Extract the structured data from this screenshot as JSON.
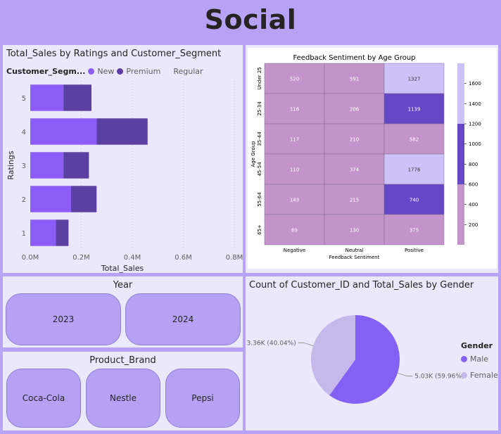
{
  "header": {
    "title": "Social"
  },
  "bar_panel": {
    "title": "Total_Sales by Ratings and Customer_Segment",
    "legend_title": "Customer_Segm...",
    "legend": [
      {
        "name": "New",
        "color": "#8c5cf6"
      },
      {
        "name": "Premium",
        "color": "#5b3fa3"
      },
      {
        "name": "Regular",
        "color": "#ece8fb"
      }
    ]
  },
  "chart_data": [
    {
      "type": "bar",
      "orientation": "horizontal",
      "stacked": true,
      "title": "Total_Sales by Ratings and Customer_Segment",
      "xlabel": "Total_Sales",
      "ylabel": "Ratings",
      "categories": [
        "5",
        "4",
        "3",
        "2",
        "1"
      ],
      "series": [
        {
          "name": "New",
          "color": "#8c5cf6",
          "values": [
            0.13,
            0.26,
            0.13,
            0.16,
            0.1
          ]
        },
        {
          "name": "Premium",
          "color": "#5b3fa3",
          "values": [
            0.11,
            0.2,
            0.1,
            0.1,
            0.05
          ]
        },
        {
          "name": "Regular",
          "color": "#ece8fb",
          "values": [
            0,
            0,
            0,
            0,
            0
          ]
        }
      ],
      "xlim": [
        0,
        0.8
      ],
      "xticks": [
        {
          "v": 0,
          "label": "0.0M"
        },
        {
          "v": 0.2,
          "label": "0.2M"
        },
        {
          "v": 0.4,
          "label": "0.4M"
        },
        {
          "v": 0.6,
          "label": "0.6M"
        },
        {
          "v": 0.8,
          "label": "0.8M"
        }
      ]
    },
    {
      "type": "heatmap",
      "title": "Feedback Sentiment by Age Group",
      "xlabel": "Feedback Sentiment",
      "ylabel": "Age Group",
      "columns": [
        "Negative",
        "Neutral",
        "Positive"
      ],
      "rows": [
        "Under 25",
        "25-34",
        "35-44",
        "45-54",
        "55-64",
        "65+"
      ],
      "values": [
        [
          520,
          591,
          1327
        ],
        [
          116,
          206,
          1139
        ],
        [
          117,
          210,
          582
        ],
        [
          110,
          374,
          1776
        ],
        [
          143,
          215,
          740
        ],
        [
          69,
          130,
          375
        ]
      ],
      "colorbar_ticks": [
        200,
        400,
        600,
        800,
        1000,
        1200,
        1400,
        1600
      ],
      "colorbar_range": [
        0,
        1800
      ],
      "bands": [
        {
          "from": 0,
          "to": 600,
          "color": "#c394c9"
        },
        {
          "from": 600,
          "to": 1200,
          "color": "#6448c6"
        },
        {
          "from": 1200,
          "to": 1800,
          "color": "#cdc2f8"
        }
      ]
    },
    {
      "type": "pie",
      "title": "Count of Customer_ID and Total_Sales by Gender",
      "legend_title": "Gender",
      "slices": [
        {
          "name": "Male",
          "value": 59.96,
          "label": "5.03K (59.96%)",
          "color": "#8361f5"
        },
        {
          "name": "Female",
          "value": 40.04,
          "label": "3.36K (40.04%)",
          "color": "#c5b9ec"
        }
      ]
    }
  ],
  "year_slicer": {
    "title": "Year",
    "options": [
      "2023",
      "2024"
    ]
  },
  "brand_slicer": {
    "title": "Product_Brand",
    "options": [
      "Coca-Cola",
      "Nestle",
      "Pepsi"
    ]
  }
}
